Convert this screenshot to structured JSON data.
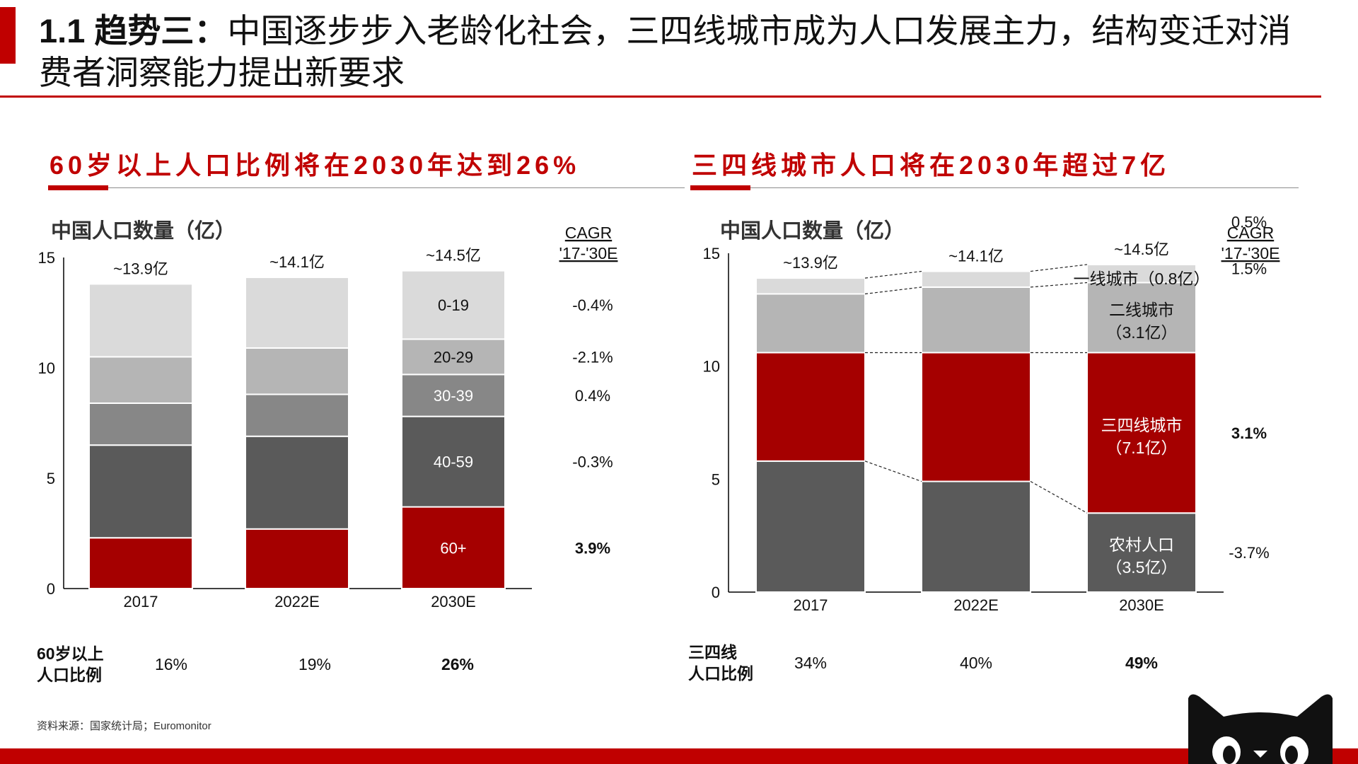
{
  "header": {
    "number": "1.1",
    "title_bold": "趋势三：",
    "title_rest": "中国逐步步入老龄化社会，三四线城市成为人口发展主力，结构变迁对消费者洞察能力提出新要求"
  },
  "left": {
    "section_title": "60岁以上人口比例将在2030年达到26%",
    "chart_title": "中国人口数量（亿）",
    "cagr_header": [
      "CAGR",
      "'17-'30E"
    ],
    "cagr_values": [
      "-0.4%",
      "-2.1%",
      "0.4%",
      "-0.3%",
      "3.9%"
    ],
    "ratio_label": [
      "60岁以上",
      "人口比例"
    ],
    "ratios": [
      "16%",
      "19%",
      "26%"
    ],
    "chart_data": {
      "type": "bar",
      "stacked": true,
      "categories": [
        "2017",
        "2022E",
        "2030E"
      ],
      "totals": [
        "~13.9亿",
        "~14.1亿",
        "~14.5亿"
      ],
      "series": [
        {
          "name": "60+",
          "values": [
            2.3,
            2.7,
            3.7
          ],
          "color": "#a50000",
          "label_color": "#ffffff"
        },
        {
          "name": "40-59",
          "values": [
            4.2,
            4.2,
            4.1
          ],
          "color": "#5a5a5a",
          "label_color": "#ffffff"
        },
        {
          "name": "30-39",
          "values": [
            1.9,
            1.9,
            1.9
          ],
          "color": "#878787",
          "label_color": "#ffffff"
        },
        {
          "name": "20-29",
          "values": [
            2.1,
            2.1,
            1.6
          ],
          "color": "#b5b5b5",
          "label_color": "#111111"
        },
        {
          "name": "0-19",
          "values": [
            3.3,
            3.2,
            3.1
          ],
          "color": "#dadada",
          "label_color": "#111111"
        }
      ],
      "ylim": [
        0,
        15
      ],
      "yticks": [
        0,
        5,
        10,
        15
      ],
      "ylabel": "中国人口数量（亿）"
    }
  },
  "right": {
    "section_title": "三四线城市人口将在2030年超过7亿",
    "chart_title": "中国人口数量（亿）",
    "cagr_header": [
      "CAGR",
      "'17-'30E"
    ],
    "cagr_values": [
      "0.5%",
      "1.5%",
      "3.1%",
      "-3.7%"
    ],
    "segment_labels": [
      {
        "line1": "一线城市（0.8亿）",
        "line2": ""
      },
      {
        "line1": "二线城市",
        "line2": "（3.1亿）"
      },
      {
        "line1": "三四线城市",
        "line2": "（7.1亿）"
      },
      {
        "line1": "农村人口",
        "line2": "（3.5亿）"
      }
    ],
    "ratio_label": [
      "三四线",
      "人口比例"
    ],
    "ratios": [
      "34%",
      "40%",
      "49%"
    ],
    "chart_data": {
      "type": "bar",
      "stacked": true,
      "categories": [
        "2017",
        "2022E",
        "2030E"
      ],
      "totals": [
        "~13.9亿",
        "~14.1亿",
        "~14.5亿"
      ],
      "series": [
        {
          "name": "农村人口",
          "values": [
            5.8,
            4.9,
            3.5
          ],
          "color": "#5a5a5a"
        },
        {
          "name": "三四线城市",
          "values": [
            4.8,
            5.7,
            7.1
          ],
          "color": "#a50000"
        },
        {
          "name": "二线城市",
          "values": [
            2.6,
            2.9,
            3.1
          ],
          "color": "#b5b5b5"
        },
        {
          "name": "一线城市",
          "values": [
            0.7,
            0.7,
            0.8
          ],
          "color": "#dadada"
        }
      ],
      "ylim": [
        0,
        15
      ],
      "yticks": [
        0,
        5,
        10,
        15
      ],
      "ylabel": "中国人口数量（亿）"
    }
  },
  "footer": {
    "source": "资料来源：国家统计局；Euromonitor"
  },
  "colors": {
    "accent": "#c00000"
  },
  "logo": {
    "icon": "tmall-cat-icon"
  }
}
